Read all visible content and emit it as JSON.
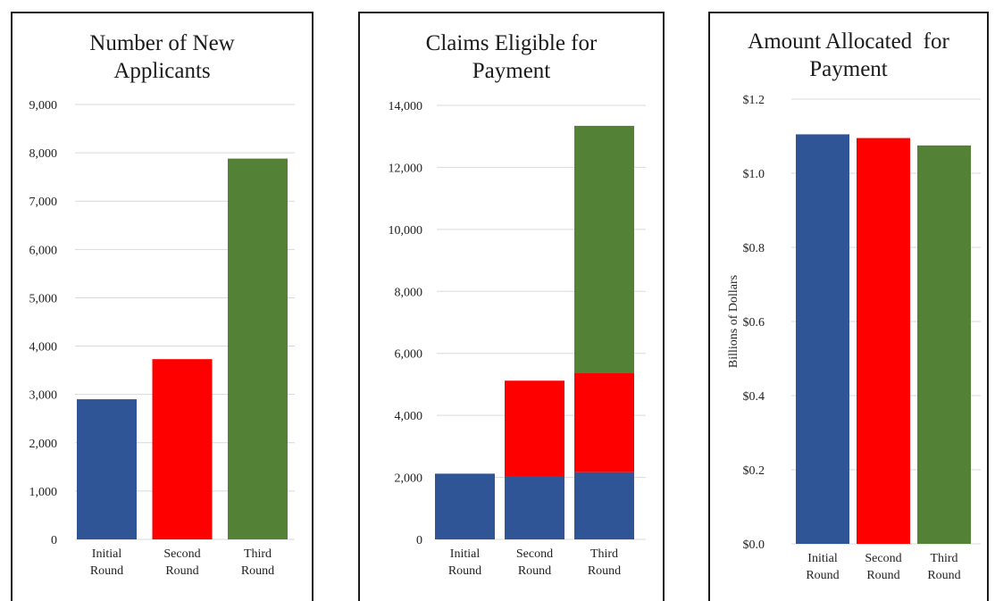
{
  "colors": {
    "initial": "#2f5597",
    "second": "#ff0000",
    "third": "#538135",
    "grid": "#d9d9d9",
    "border": "#1a1a1a"
  },
  "chart_data": [
    {
      "type": "bar",
      "title_lines": [
        "Number of New",
        "Applicants"
      ],
      "ylabel": "",
      "categories": [
        [
          "Initial",
          "Round"
        ],
        [
          "Second",
          "Round"
        ],
        [
          "Third",
          "Round"
        ]
      ],
      "ylim": [
        0,
        9000
      ],
      "yticks": [
        0,
        1000,
        2000,
        3000,
        4000,
        5000,
        6000,
        7000,
        8000,
        9000
      ],
      "ytick_labels": [
        "0",
        "1,000",
        "2,000",
        "3,000",
        "4,000",
        "5,000",
        "6,000",
        "7,000",
        "8,000",
        "9,000"
      ],
      "stacked": false,
      "values": [
        2900,
        3730,
        7880
      ],
      "bar_colors": [
        "#2f5597",
        "#ff0000",
        "#538135"
      ],
      "grid": true,
      "legend": "none"
    },
    {
      "type": "bar",
      "title_lines": [
        "Claims Eligible for",
        "Payment"
      ],
      "ylabel": "",
      "categories": [
        [
          "Initial",
          "Round"
        ],
        [
          "Second",
          "Round"
        ],
        [
          "Third",
          "Round"
        ]
      ],
      "ylim": [
        0,
        14000
      ],
      "yticks": [
        0,
        2000,
        4000,
        6000,
        8000,
        10000,
        12000,
        14000
      ],
      "ytick_labels": [
        "0",
        "2,000",
        "4,000",
        "6,000",
        "8,000",
        "10,000",
        "12,000",
        "14,000"
      ],
      "stacked": true,
      "series": [
        {
          "color": "#2f5597",
          "values": [
            2120,
            2030,
            2170
          ]
        },
        {
          "color": "#ff0000",
          "values": [
            0,
            3090,
            3200
          ]
        },
        {
          "color": "#538135",
          "values": [
            0,
            0,
            7970
          ]
        }
      ],
      "grid": true,
      "legend": "none"
    },
    {
      "type": "bar",
      "title_lines": [
        "Amount Allocated  for",
        "Payment"
      ],
      "ylabel": "Billions of Dollars",
      "categories": [
        [
          "Initial",
          "Round"
        ],
        [
          "Second",
          "Round"
        ],
        [
          "Third",
          "Round"
        ]
      ],
      "ylim": [
        0,
        1.2
      ],
      "yticks": [
        0,
        0.2,
        0.4,
        0.6,
        0.8,
        1.0,
        1.2
      ],
      "ytick_labels": [
        "$0.0",
        "$0.2",
        "$0.4",
        "$0.6",
        "$0.8",
        "$1.0",
        "$1.2"
      ],
      "stacked": false,
      "values": [
        1.105,
        1.095,
        1.075
      ],
      "bar_colors": [
        "#2f5597",
        "#ff0000",
        "#538135"
      ],
      "grid": true,
      "legend": "none"
    }
  ]
}
